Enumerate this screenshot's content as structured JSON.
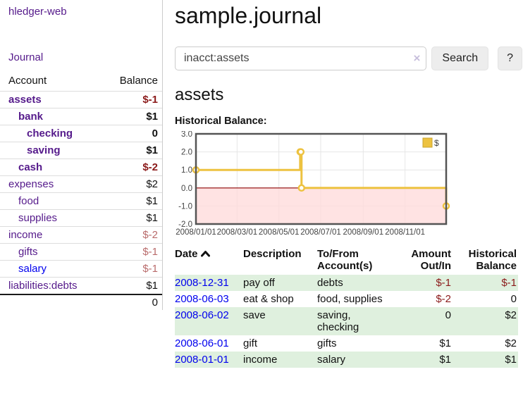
{
  "app": {
    "brand": "hledger-web",
    "nav_journal": "Journal"
  },
  "colors": {
    "link_purple": "#551a8b",
    "link_blue": "#0000ee",
    "negative_strong": "#8b1a1a",
    "negative_muted": "#b96b6b",
    "row_stripe_green": "#dff0de",
    "chart_gold": "#edc240",
    "chart_negative_fill": "#ffd9d9",
    "chart_zero_line": "#8b0000"
  },
  "sidebar": {
    "col_account": "Account",
    "col_balance": "Balance",
    "accounts": [
      {
        "name": "assets",
        "balance": "$-1"
      },
      {
        "name": "bank",
        "balance": "$1"
      },
      {
        "name": "checking",
        "balance": "0"
      },
      {
        "name": "saving",
        "balance": "$1"
      },
      {
        "name": "cash",
        "balance": "$-2"
      },
      {
        "name": "expenses",
        "balance": "$2"
      },
      {
        "name": "food",
        "balance": "$1"
      },
      {
        "name": "supplies",
        "balance": "$1"
      },
      {
        "name": "income",
        "balance": "$-2"
      },
      {
        "name": "gifts",
        "balance": "$-1"
      },
      {
        "name": "salary",
        "balance": "$-1"
      },
      {
        "name": "liabilities:debts",
        "balance": "$1"
      }
    ],
    "total": "0"
  },
  "header": {
    "title": "sample.journal"
  },
  "search": {
    "value": "inacct:assets",
    "clear_icon": "×",
    "button_label": "Search",
    "help_label": "?"
  },
  "main": {
    "account_title": "assets",
    "chart_label": "Historical Balance:"
  },
  "chart_data": {
    "type": "line",
    "title": "Historical Balance",
    "step": true,
    "series": [
      {
        "name": "$",
        "color": "#edc240",
        "points": [
          [
            "2008-01-01",
            1
          ],
          [
            "2008-06-01",
            2
          ],
          [
            "2008-06-02",
            2
          ],
          [
            "2008-06-03",
            0
          ],
          [
            "2008-12-31",
            -1
          ]
        ]
      }
    ],
    "x_range": [
      "2008-01-01",
      "2008-12-31"
    ],
    "x_ticks": [
      "2008/01/01",
      "2008/03/01",
      "2008/05/01",
      "2008/07/01",
      "2008/09/01",
      "2008/11/01"
    ],
    "y_ticks": [
      3.0,
      2.0,
      1.0,
      0.0,
      -1.0,
      -2.0
    ],
    "ylim": [
      -2,
      3
    ],
    "grid": true,
    "legend": "$",
    "legend_position": "top-right",
    "negative_region_fill": "#ffd9d9",
    "zero_line_color": "#8b0000"
  },
  "register": {
    "headers": {
      "date": "Date",
      "description": "Description",
      "accounts": "To/From Account(s)",
      "amount": "Amount Out/In",
      "balance": "Historical Balance"
    },
    "rows": [
      {
        "date": "2008-12-31",
        "description": "pay off",
        "accounts": "debts",
        "amount": "$-1",
        "balance": "$-1"
      },
      {
        "date": "2008-06-03",
        "description": "eat & shop",
        "accounts": "food, supplies",
        "amount": "$-2",
        "balance": "0"
      },
      {
        "date": "2008-06-02",
        "description": "save",
        "accounts": "saving,\nchecking",
        "amount": "0",
        "balance": "$2"
      },
      {
        "date": "2008-06-01",
        "description": "gift",
        "accounts": "gifts",
        "amount": "$1",
        "balance": "$2"
      },
      {
        "date": "2008-01-01",
        "description": "income",
        "accounts": "salary",
        "amount": "$1",
        "balance": "$1"
      }
    ]
  }
}
